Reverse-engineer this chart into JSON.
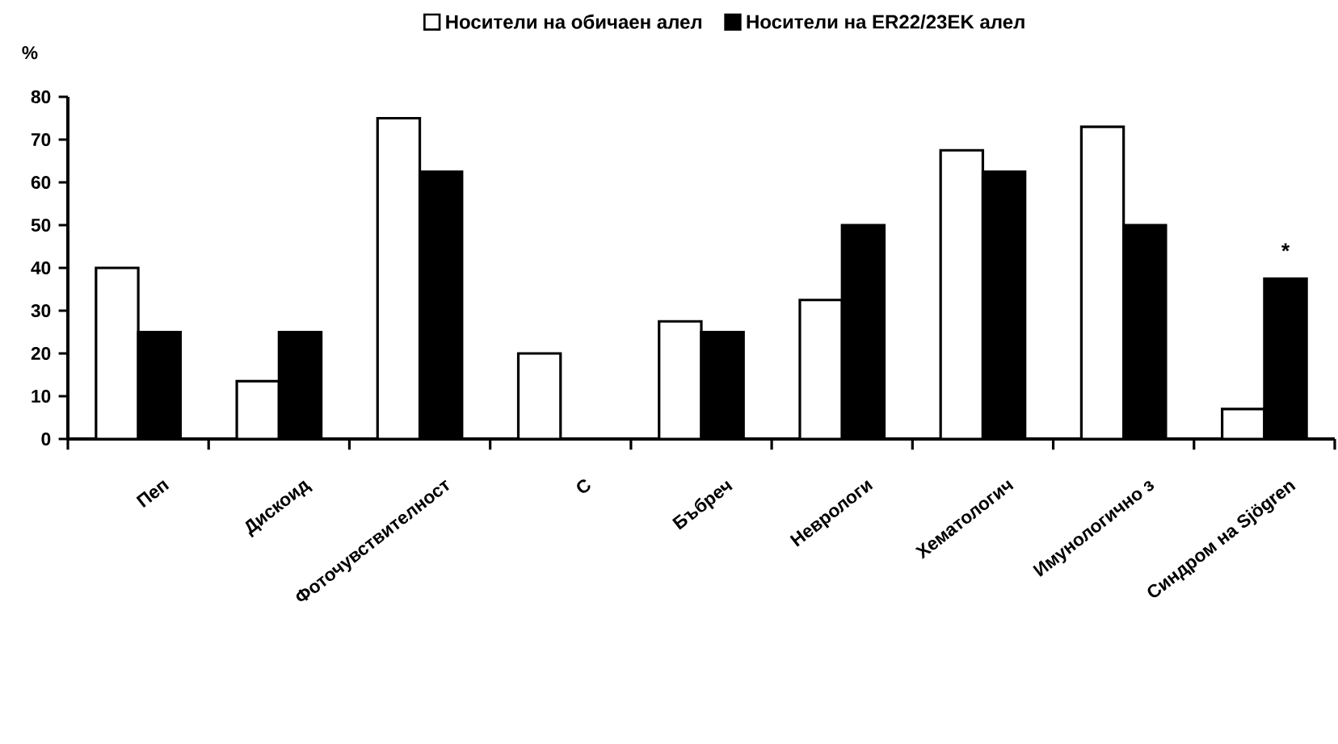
{
  "chart_data": {
    "type": "bar",
    "ylabel": "%",
    "categories": [
      "Пеп",
      "Дискоид",
      "Фоточувствителност",
      "С",
      "Бъбреч",
      "Неврологи",
      "Хематологич",
      "Имунологично з",
      "Синдром на Sjögren"
    ],
    "series": [
      {
        "name": "Носители на обичаен алел",
        "color": "#ffffff",
        "values": [
          40,
          13.5,
          75,
          20,
          27.5,
          32.5,
          67.5,
          73,
          7
        ]
      },
      {
        "name": "Носители на ER22/23EK алел",
        "color": "#000000",
        "values": [
          25,
          25,
          62.5,
          0,
          25,
          50,
          62.5,
          50,
          37.5
        ]
      }
    ],
    "ylim": [
      0,
      80
    ],
    "yticks": [
      0,
      10,
      20,
      30,
      40,
      50,
      60,
      70,
      80
    ],
    "grid": false,
    "legend": "top",
    "annotations": [
      "*"
    ]
  }
}
